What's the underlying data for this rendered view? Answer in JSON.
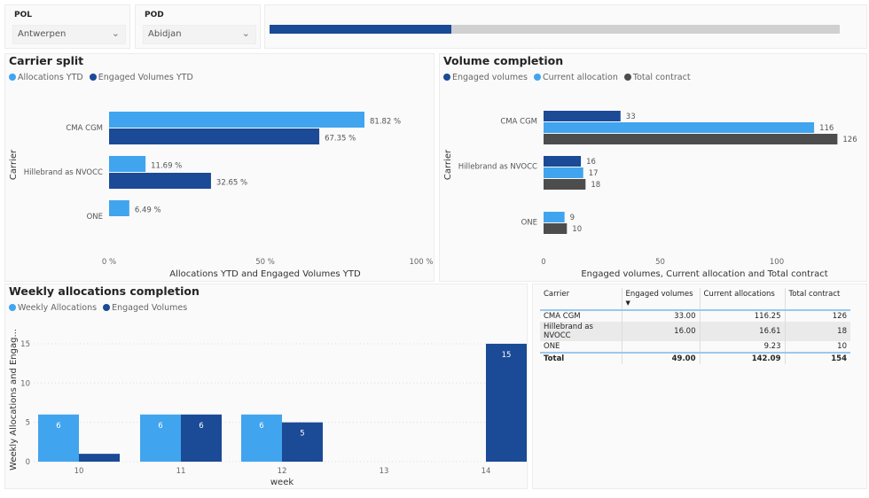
{
  "colors": {
    "allocation": "#41A4EE",
    "engaged": "#1B4A96",
    "total": "#4D4D4D",
    "progress_track": "#d0d0d0"
  },
  "slicers": [
    {
      "label": "POL",
      "value": "Antwerpen",
      "icon": "chevron-down-icon"
    },
    {
      "label": "POD",
      "value": "Abidjan",
      "icon": "chevron-down-icon"
    }
  ],
  "progress": {
    "value": 49,
    "max": 154,
    "fraction": 0.318
  },
  "carrier_split": {
    "title": "Carrier split",
    "legend": [
      "Allocations YTD",
      "Engaged Volumes YTD"
    ]
  },
  "volume_completion": {
    "title": "Volume completion",
    "legend": [
      "Engaged volumes",
      "Current allocation",
      "Total contract"
    ]
  },
  "weekly": {
    "title": "Weekly allocations completion",
    "legend": [
      "Weekly Allocations",
      "Engaged Volumes"
    ]
  },
  "chart_data": [
    {
      "type": "bar",
      "orientation": "horizontal",
      "title": "Carrier split",
      "xlabel": "Allocations YTD and Engaged Volumes YTD",
      "ylabel": "Carrier",
      "categories": [
        "CMA CGM",
        "Hillebrand as NVOCC",
        "ONE"
      ],
      "xlim": [
        0,
        100
      ],
      "xticks": [
        "0 %",
        "50 %",
        "100 %"
      ],
      "legend": "top-left",
      "series": [
        {
          "name": "Allocations YTD",
          "values": [
            81.82,
            11.69,
            6.49
          ],
          "labels": [
            "81.82 %",
            "11.69 %",
            "6.49 %"
          ]
        },
        {
          "name": "Engaged Volumes YTD",
          "values": [
            67.35,
            32.65,
            null
          ],
          "labels": [
            "67.35 %",
            "32.65 %",
            ""
          ]
        }
      ]
    },
    {
      "type": "bar",
      "orientation": "horizontal",
      "title": "Volume completion",
      "xlabel": "Engaged volumes, Current allocation and Total contract",
      "ylabel": "Carrier",
      "categories": [
        "CMA CGM",
        "Hillebrand as NVOCC",
        "ONE"
      ],
      "xlim": [
        0,
        135
      ],
      "xticks": [
        "0",
        "50",
        "100"
      ],
      "legend": "top-left",
      "series": [
        {
          "name": "Engaged volumes",
          "values": [
            33,
            16,
            null
          ]
        },
        {
          "name": "Current allocation",
          "values": [
            116,
            17,
            9
          ]
        },
        {
          "name": "Total contract",
          "values": [
            126,
            18,
            10
          ]
        }
      ]
    },
    {
      "type": "bar",
      "orientation": "vertical",
      "title": "Weekly allocations completion",
      "xlabel": "week",
      "ylabel": "Weekly Allocations and Engag...",
      "categories": [
        "10",
        "11",
        "12",
        "13",
        "14"
      ],
      "ylim": [
        0,
        15
      ],
      "yticks": [
        "0",
        "5",
        "10",
        "15"
      ],
      "grid": true,
      "legend": "top-left",
      "series": [
        {
          "name": "Weekly Allocations",
          "values": [
            6,
            6,
            6,
            null,
            null
          ]
        },
        {
          "name": "Engaged Volumes",
          "values": [
            1,
            6,
            5,
            null,
            15
          ]
        }
      ]
    }
  ],
  "table": {
    "headers": [
      "Carrier",
      "Engaged volumes",
      "Current allocations",
      "Total contract"
    ],
    "rows": [
      [
        "CMA CGM",
        "33.00",
        "116.25",
        "126"
      ],
      [
        "Hillebrand as NVOCC",
        "16.00",
        "16.61",
        "18"
      ],
      [
        "ONE",
        "",
        "9.23",
        "10"
      ]
    ],
    "total": [
      "Total",
      "49.00",
      "142.09",
      "154"
    ]
  }
}
